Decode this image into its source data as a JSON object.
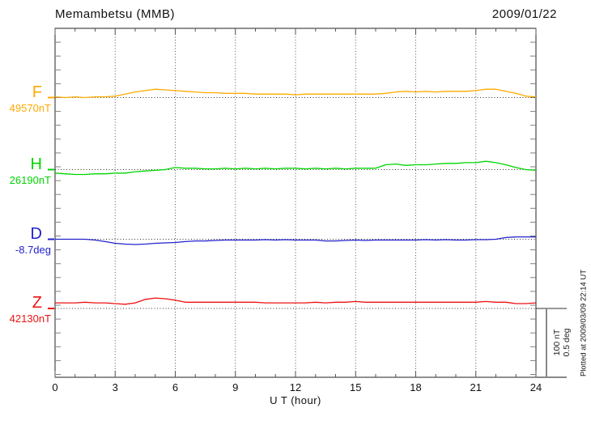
{
  "header": {
    "title": "Memambetsu (MMB)",
    "date": "2009/01/22"
  },
  "x_axis": {
    "label": "U T (hour)",
    "min": 0,
    "max": 24,
    "minor_step": 1,
    "major_step": 3,
    "tick_labels": [
      "0",
      "3",
      "6",
      "9",
      "12",
      "15",
      "18",
      "21",
      "24"
    ]
  },
  "scale_bar": {
    "line1": "100 nT",
    "line2": "0.5 deg"
  },
  "footer_right": {
    "plotted_at": "Plotted at 2009/03/09 22:14 UT"
  },
  "chart_data": {
    "type": "line",
    "title": "Memambetsu (MMB) magnetogram",
    "subtitle": "2009/01/22",
    "xlabel": "U T (hour)",
    "x_range": [
      0,
      24
    ],
    "x_start": 0,
    "x_step_hours": 0.5,
    "grid": "dotted vertical gridlines every 3 h; dotted horizontal baseline per trace",
    "legend_position": "left margin, one colored label per trace",
    "scale": {
      "bar_span_nT": 100,
      "bar_span_deg": 0.5
    },
    "series": [
      {
        "name": "F",
        "unit": "nT",
        "color": "#FFAA00",
        "baseline_label": "49570nT",
        "baseline_value": 49570,
        "offsets": [
          1,
          0,
          1,
          0,
          1,
          1,
          2,
          5,
          8,
          10,
          12,
          11,
          10,
          9,
          8,
          7,
          7,
          6,
          6,
          6,
          5,
          5,
          5,
          5,
          4,
          5,
          5,
          5,
          5,
          5,
          5,
          5,
          5,
          6,
          8,
          9,
          8,
          9,
          8,
          9,
          9,
          9,
          10,
          12,
          12,
          9,
          6,
          2,
          1
        ]
      },
      {
        "name": "H",
        "unit": "nT",
        "color": "#00D400",
        "baseline_label": "26190nT",
        "baseline_value": 26190,
        "offsets": [
          -5,
          -6,
          -7,
          -7,
          -6,
          -6,
          -5,
          -5,
          -3,
          -2,
          -1,
          0,
          3,
          2,
          2,
          1,
          1,
          2,
          1,
          2,
          1,
          2,
          1,
          2,
          2,
          1,
          2,
          1,
          2,
          1,
          2,
          2,
          2,
          7,
          8,
          6,
          7,
          7,
          8,
          9,
          9,
          10,
          10,
          12,
          10,
          7,
          3,
          0,
          -1
        ]
      },
      {
        "name": "D",
        "unit": "deg",
        "color": "#2222CC",
        "baseline_label": "-8.7deg",
        "baseline_value": -8.7,
        "offsets": [
          0,
          0,
          0,
          0,
          -0.006,
          -0.017,
          -0.029,
          -0.035,
          -0.038,
          -0.035,
          -0.029,
          -0.026,
          -0.023,
          -0.017,
          -0.012,
          -0.012,
          -0.009,
          -0.006,
          -0.006,
          -0.006,
          -0.006,
          -0.003,
          -0.006,
          -0.003,
          -0.006,
          -0.006,
          -0.006,
          -0.012,
          -0.012,
          -0.009,
          -0.006,
          -0.009,
          -0.006,
          -0.006,
          -0.006,
          -0.006,
          -0.006,
          -0.003,
          -0.006,
          -0.003,
          -0.006,
          -0.006,
          -0.003,
          -0.003,
          0,
          0.012,
          0.017,
          0.017,
          0.017
        ]
      },
      {
        "name": "Z",
        "unit": "nT",
        "color": "#EE1111",
        "baseline_label": "42130nT",
        "baseline_value": 42130,
        "offsets": [
          8,
          8,
          8,
          9,
          8,
          8,
          7,
          6,
          8,
          13,
          15,
          14,
          12,
          9,
          9,
          9,
          9,
          9,
          9,
          9,
          9,
          8,
          8,
          8,
          8,
          8,
          9,
          8,
          9,
          9,
          10,
          9,
          9,
          9,
          9,
          9,
          9,
          9,
          9,
          9,
          9,
          9,
          9,
          10,
          9,
          9,
          7,
          7,
          8
        ]
      }
    ]
  }
}
